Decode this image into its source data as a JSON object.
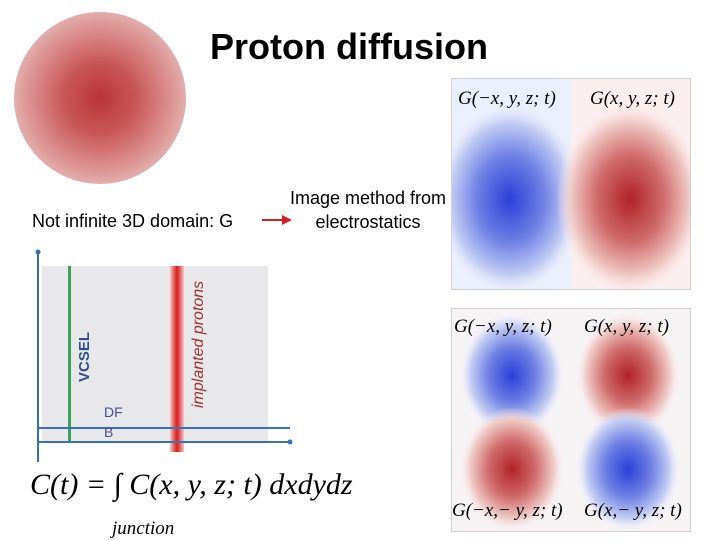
{
  "slide": {
    "title": "Proton diffusion",
    "note": "Not infinite 3D domain: G",
    "image_method": "Image method from electrostatics"
  },
  "panels": {
    "top": {
      "left_label": "G(−x, y, z; t)",
      "right_label": "G(x, y, z; t)"
    },
    "bottom": {
      "top_left_label": "G(−x, y, z; t)",
      "top_right_label": "G(x, y, z; t)",
      "bottom_left_label": "G(−x,− y, z; t)",
      "bottom_right_label": "G(x,− y, z; t)"
    }
  },
  "domain_diagram": {
    "vcsel_label": "VCSEL",
    "protons_label": "implanted protons",
    "dfb_label": "DF B"
  },
  "equation": {
    "text": "C(t) = ∫ C(x, y, z; t) dxdydz",
    "subscript": "junction"
  },
  "colors": {
    "blue_lobe": "#2d3fd6",
    "red_lobe": "#b0222a",
    "vcsel_line": "#3aa25a",
    "axis_line": "#3b6fb8",
    "arrow": "#d41f1f"
  }
}
